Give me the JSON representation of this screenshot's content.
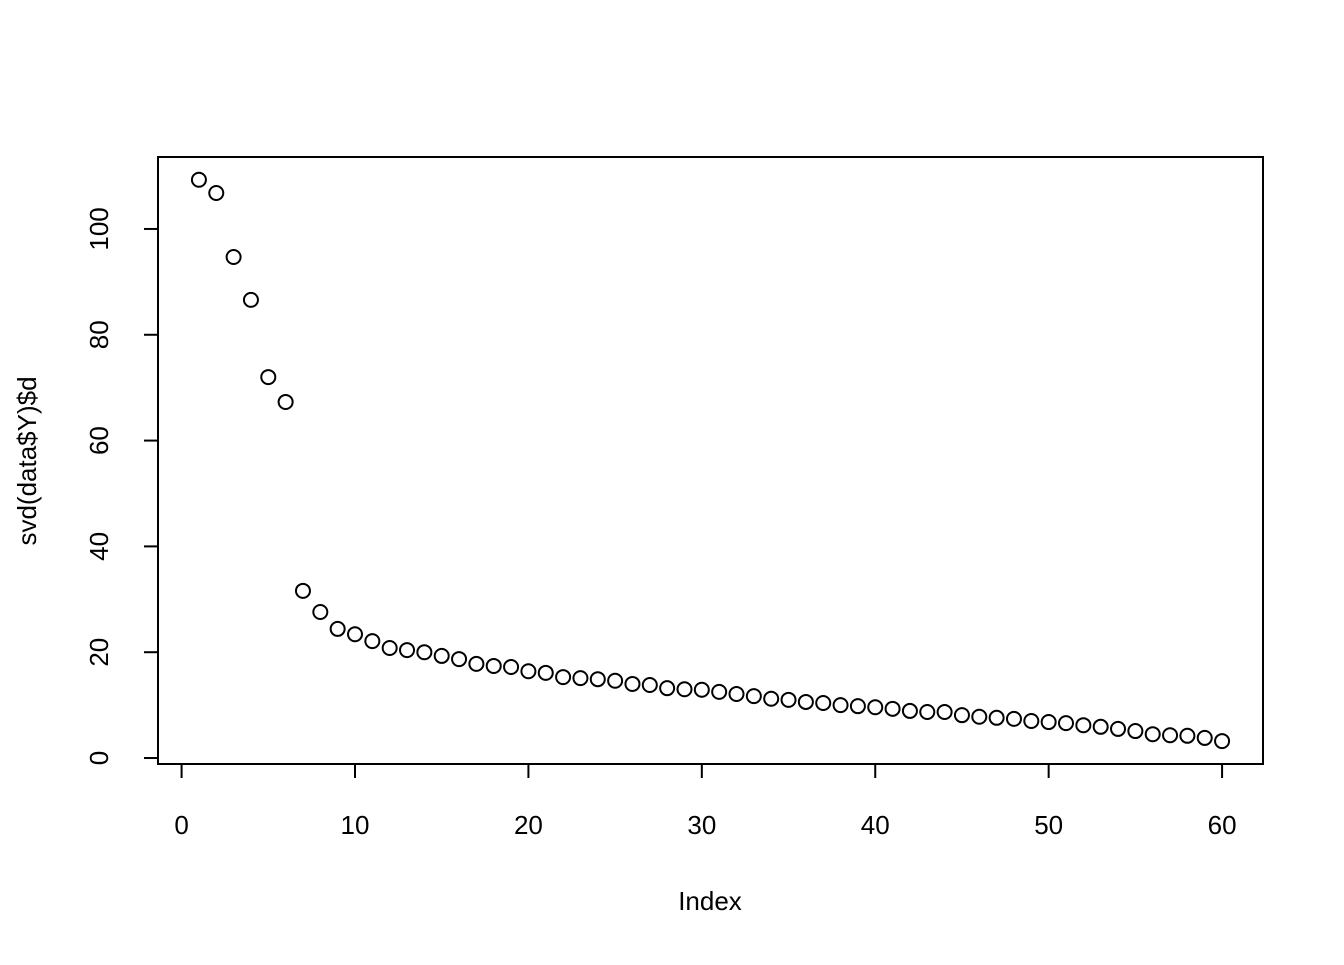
{
  "chart_data": {
    "type": "scatter",
    "x_label": "Index",
    "y_label": "svd(data$Y)$d",
    "x": [
      1,
      2,
      3,
      4,
      5,
      6,
      7,
      8,
      9,
      10,
      11,
      12,
      13,
      14,
      15,
      16,
      17,
      18,
      19,
      20,
      21,
      22,
      23,
      24,
      25,
      26,
      27,
      28,
      29,
      30,
      31,
      32,
      33,
      34,
      35,
      36,
      37,
      38,
      39,
      40,
      41,
      42,
      43,
      44,
      45,
      46,
      47,
      48,
      49,
      50,
      51,
      52,
      53,
      54,
      55,
      56,
      57,
      58,
      59,
      60
    ],
    "values": [
      109.3,
      106.8,
      94.7,
      86.6,
      72.0,
      67.3,
      31.6,
      27.6,
      24.4,
      23.4,
      22.1,
      20.8,
      20.4,
      20.0,
      19.3,
      18.7,
      17.8,
      17.4,
      17.2,
      16.4,
      16.1,
      15.3,
      15.1,
      14.9,
      14.6,
      14.0,
      13.8,
      13.2,
      13.0,
      12.9,
      12.5,
      12.1,
      11.7,
      11.2,
      11.0,
      10.6,
      10.4,
      10.0,
      9.8,
      9.6,
      9.3,
      8.9,
      8.7,
      8.7,
      8.1,
      7.8,
      7.6,
      7.4,
      7.0,
      6.8,
      6.6,
      6.2,
      5.9,
      5.5,
      5.1,
      4.5,
      4.3,
      4.2,
      3.8,
      3.2
    ],
    "color": "#000000",
    "xlim": [
      -1.36,
      62.36
    ],
    "xticks": [
      0,
      10,
      20,
      30,
      40,
      50,
      60
    ],
    "ylim": [
      -1.13,
      113.6
    ],
    "yticks": [
      0,
      20,
      40,
      60,
      80,
      100
    ],
    "grid": false
  }
}
